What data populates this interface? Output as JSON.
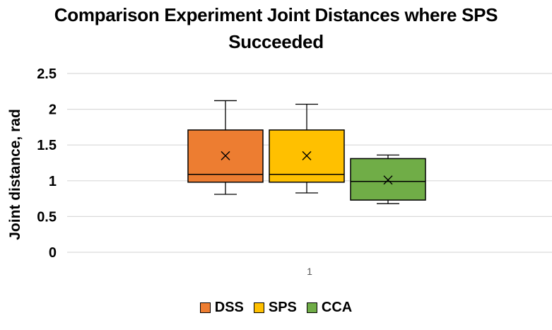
{
  "chart_data": {
    "type": "box",
    "title_lines": [
      "Comparison Experiment Joint Distances where SPS",
      "Succeeded"
    ],
    "xlabel": "",
    "ylabel": "Joint distance, rad",
    "ylim": [
      0,
      2.5
    ],
    "yticks": [
      0,
      0.5,
      1,
      1.5,
      2,
      2.5
    ],
    "ytick_labels": [
      "0",
      "0.5",
      "1",
      "1.5",
      "2",
      "2.5"
    ],
    "categories": [
      "1"
    ],
    "grid": true,
    "legend_position": "bottom",
    "series": [
      {
        "name": "DSS",
        "color": "#ED7D31",
        "min": 0.81,
        "q1": 0.98,
        "median": 1.09,
        "q3": 1.71,
        "max": 2.12,
        "mean": 1.35
      },
      {
        "name": "SPS",
        "color": "#FFC000",
        "min": 0.83,
        "q1": 0.98,
        "median": 1.09,
        "q3": 1.71,
        "max": 2.07,
        "mean": 1.35
      },
      {
        "name": "CCA",
        "color": "#70AD47",
        "min": 0.68,
        "q1": 0.73,
        "median": 0.99,
        "q3": 1.31,
        "max": 1.36,
        "mean": 1.01
      }
    ]
  }
}
